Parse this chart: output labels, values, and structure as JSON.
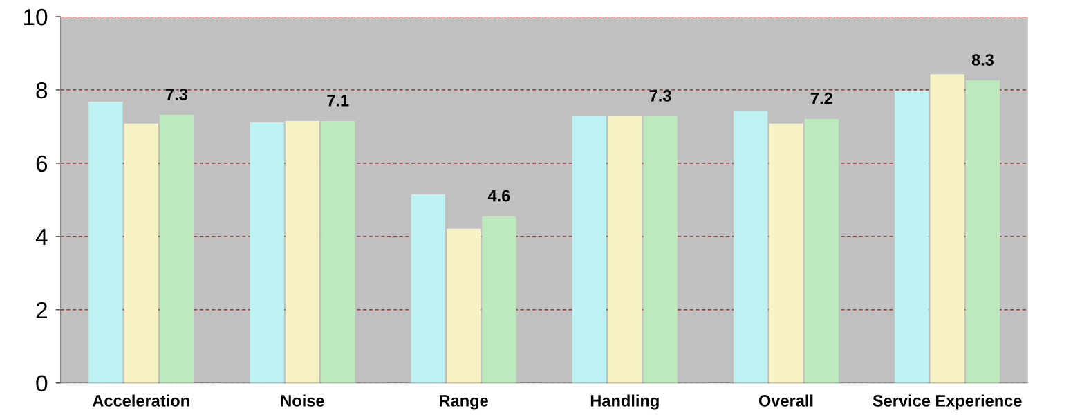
{
  "chart_data": {
    "type": "bar",
    "categories": [
      "Acceleration",
      "Noise",
      "Range",
      "Handling",
      "Overall",
      "Service Experience"
    ],
    "series": [
      {
        "color": "#bdf2f2",
        "values": [
          7.68,
          7.11,
          5.15,
          7.28,
          7.43,
          7.98
        ]
      },
      {
        "color": "#f7f3c4",
        "values": [
          7.08,
          7.15,
          4.21,
          7.28,
          7.08,
          8.43
        ]
      },
      {
        "color": "#bdeabd",
        "values": [
          7.32,
          7.15,
          4.55,
          7.28,
          7.21,
          8.26
        ],
        "value_labels": [
          "7.3",
          "7.1",
          "4.6",
          "7.3",
          "7.2",
          "8.3"
        ]
      }
    ],
    "ylim": [
      0,
      10
    ],
    "yticks": [
      0,
      2,
      4,
      6,
      8,
      10
    ],
    "grid": "y",
    "legend": false
  }
}
